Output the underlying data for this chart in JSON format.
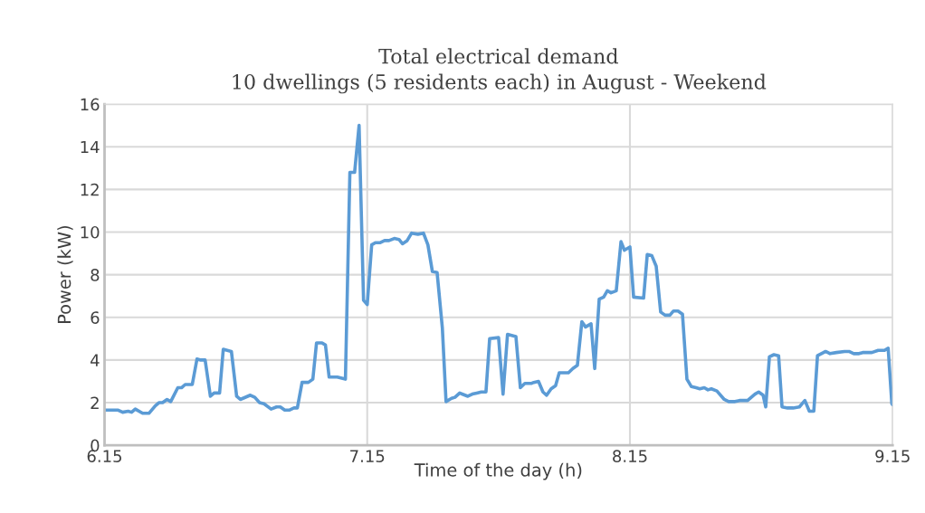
{
  "chart_data": {
    "type": "line",
    "title": "Total electrical demand\n10 dwellings (5 residents each) in August - Weekend",
    "xlabel": "Time of the day (h)",
    "ylabel": "Power (kW)",
    "x": [
      6.15,
      6.202,
      6.219,
      6.24,
      6.253,
      6.267,
      6.295,
      6.319,
      6.343,
      6.357,
      6.371,
      6.388,
      6.402,
      6.429,
      6.443,
      6.457,
      6.484,
      6.502,
      6.516,
      6.533,
      6.553,
      6.567,
      6.588,
      6.602,
      6.633,
      6.653,
      6.667,
      6.705,
      6.722,
      6.74,
      6.757,
      6.784,
      6.805,
      6.819,
      6.836,
      6.853,
      6.871,
      6.884,
      6.902,
      6.926,
      6.943,
      6.957,
      6.978,
      6.991,
      7.005,
      7.036,
      7.067,
      7.084,
      7.102,
      7.119,
      7.136,
      7.15,
      7.167,
      7.181,
      7.198,
      7.216,
      7.233,
      7.253,
      7.271,
      7.284,
      7.302,
      7.319,
      7.343,
      7.364,
      7.381,
      7.398,
      7.416,
      7.436,
      7.45,
      7.471,
      7.484,
      7.502,
      7.533,
      7.55,
      7.567,
      7.584,
      7.602,
      7.616,
      7.65,
      7.667,
      7.684,
      7.716,
      7.733,
      7.75,
      7.774,
      7.784,
      7.802,
      7.819,
      7.833,
      7.85,
      7.867,
      7.881,
      7.916,
      7.933,
      7.95,
      7.967,
      7.981,
      8.002,
      8.016,
      8.033,
      8.05,
      8.064,
      8.078,
      8.098,
      8.116,
      8.129,
      8.15,
      8.164,
      8.202,
      8.216,
      8.233,
      8.25,
      8.267,
      8.284,
      8.302,
      8.316,
      8.333,
      8.35,
      8.367,
      8.384,
      8.402,
      8.416,
      8.433,
      8.447,
      8.46,
      8.481,
      8.509,
      8.526,
      8.55,
      8.567,
      8.598,
      8.626,
      8.64,
      8.657,
      8.667,
      8.681,
      8.698,
      8.716,
      8.729,
      8.75,
      8.771,
      8.795,
      8.816,
      8.833,
      8.85,
      8.864,
      8.895,
      8.912,
      8.936,
      8.967,
      8.984,
      9.002,
      9.022,
      9.036,
      9.071,
      9.095,
      9.119,
      9.133,
      9.147,
      9.15
    ],
    "series": [
      {
        "color": "#5b9bd5",
        "values": [
          1.65,
          1.65,
          1.55,
          1.6,
          1.55,
          1.7,
          1.5,
          1.5,
          1.85,
          2.0,
          2.0,
          2.15,
          2.05,
          2.7,
          2.7,
          2.85,
          2.85,
          4.05,
          4.0,
          4.0,
          2.3,
          2.45,
          2.45,
          4.5,
          4.4,
          2.3,
          2.15,
          2.35,
          2.25,
          2.0,
          1.95,
          1.7,
          1.8,
          1.8,
          1.65,
          1.65,
          1.75,
          1.75,
          2.95,
          2.95,
          3.1,
          4.8,
          4.8,
          4.7,
          3.2,
          3.2,
          3.1,
          12.8,
          12.8,
          15.0,
          6.8,
          6.6,
          9.4,
          9.5,
          9.5,
          9.6,
          9.6,
          9.7,
          9.65,
          9.45,
          9.6,
          9.95,
          9.9,
          9.95,
          9.4,
          8.15,
          8.1,
          5.5,
          2.05,
          2.2,
          2.25,
          2.45,
          2.3,
          2.4,
          2.45,
          2.5,
          2.5,
          5.0,
          5.05,
          2.4,
          5.2,
          5.1,
          2.7,
          2.9,
          2.9,
          2.95,
          3.0,
          2.5,
          2.35,
          2.65,
          2.8,
          3.4,
          3.4,
          3.6,
          3.75,
          5.8,
          5.55,
          5.7,
          3.6,
          6.85,
          6.95,
          7.25,
          7.15,
          7.25,
          9.55,
          9.15,
          9.3,
          6.95,
          6.9,
          8.95,
          8.9,
          8.4,
          6.25,
          6.1,
          6.1,
          6.3,
          6.3,
          6.15,
          3.1,
          2.75,
          2.7,
          2.65,
          2.7,
          2.6,
          2.65,
          2.55,
          2.15,
          2.05,
          2.05,
          2.1,
          2.1,
          2.4,
          2.5,
          2.35,
          1.8,
          4.15,
          4.25,
          4.2,
          1.8,
          1.75,
          1.75,
          1.8,
          2.1,
          1.6,
          1.6,
          4.2,
          4.4,
          4.3,
          4.35,
          4.4,
          4.4,
          4.3,
          4.3,
          4.35,
          4.35,
          4.45,
          4.45,
          4.55,
          1.95,
          1.9
        ]
      }
    ],
    "xlim": [
      6.15,
      9.15
    ],
    "xticks": [
      6.15,
      7.15,
      8.15,
      9.15
    ],
    "ylim": [
      0,
      16
    ],
    "yticks": [
      0,
      2,
      4,
      6,
      8,
      10,
      12,
      14,
      16
    ],
    "grid": true,
    "marker": "none",
    "line_style": "solid"
  }
}
